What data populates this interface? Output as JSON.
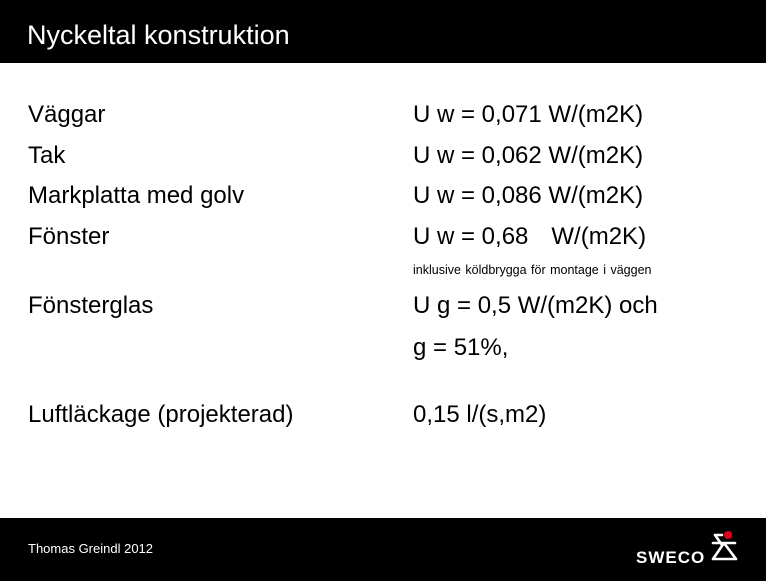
{
  "slide": {
    "title": "Nyckeltal konstruktion"
  },
  "rows": [
    {
      "label": "Väggar",
      "value": "U w = 0,071",
      "unit": "W/(m2K)"
    },
    {
      "label": "Tak",
      "value": "U w = 0,062",
      "unit": "W/(m2K)"
    },
    {
      "label": "Markplatta med golv",
      "value": "U w = 0,086",
      "unit": "W/(m2K)"
    },
    {
      "label": "Fönster",
      "value": "U w = 0,68",
      "unit": "W/(m2K)"
    }
  ],
  "note": "inklusive köldbrygga för montage i väggen",
  "glass": {
    "label": "Fönsterglas",
    "value_line1": "U g = 0,5 W/(m2K) och",
    "value_line2": "g = 51%,"
  },
  "leakage": {
    "label": "Luftläckage (projekterad)",
    "value": "0,15 l/(s,m2)"
  },
  "footer": {
    "author": "Thomas Greindl 2012",
    "logo_text": "SWECO",
    "logo_accent": "#e2001a",
    "background": "#000000"
  }
}
